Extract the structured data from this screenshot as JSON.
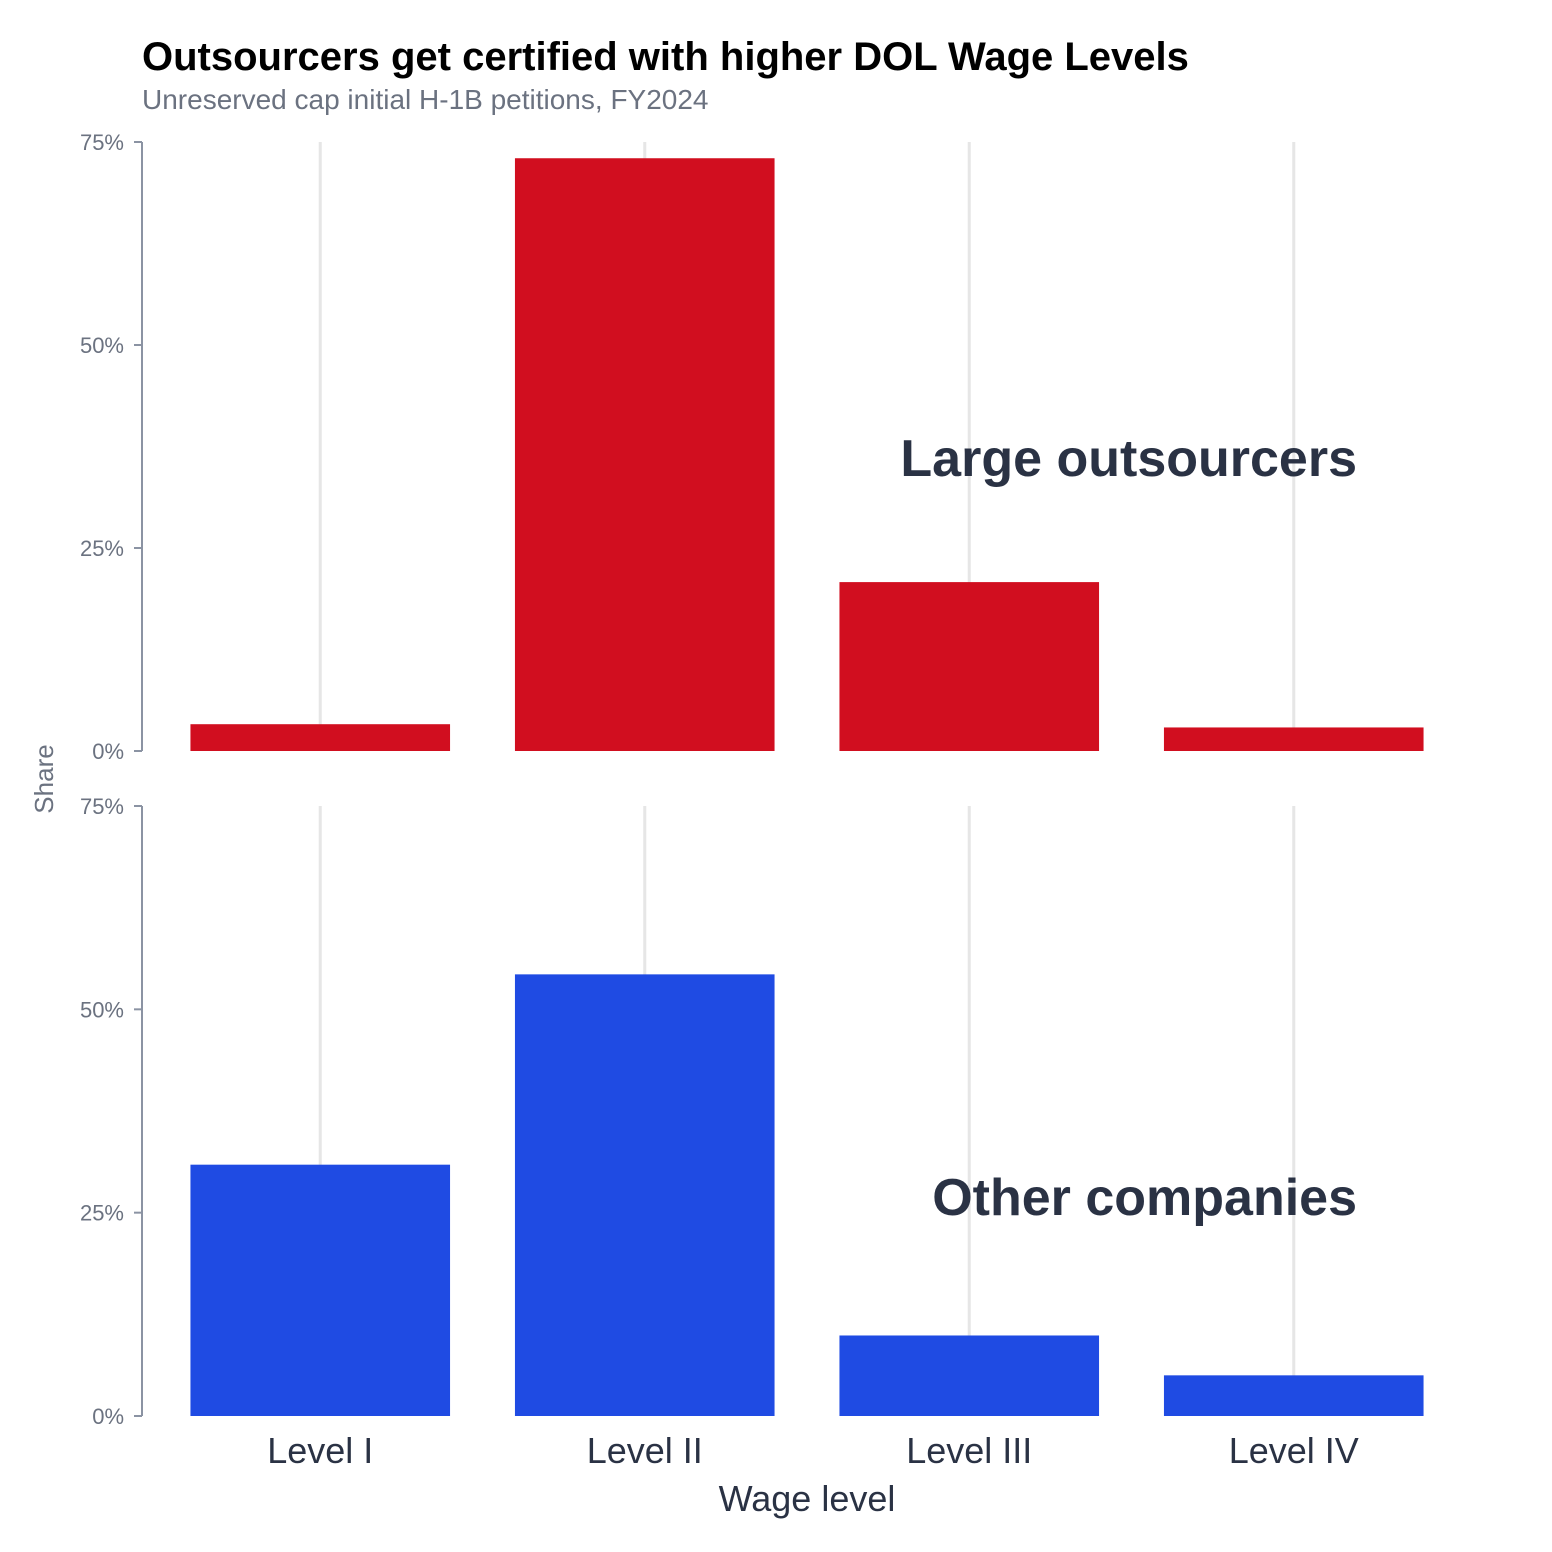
{
  "chart_data": {
    "type": "bar",
    "title": "Outsourcers get certified with higher DOL Wage Levels",
    "subtitle": "Unreserved cap initial H-1B petitions, FY2024",
    "xlabel": "Wage level",
    "ylabel": "Share",
    "categories": [
      "Level I",
      "Level II",
      "Level III",
      "Level IV"
    ],
    "ylim": [
      0,
      75
    ],
    "yticks": [
      0,
      25,
      50,
      75
    ],
    "ytick_labels": [
      "0%",
      "25%",
      "50%",
      "75%"
    ],
    "grid": "vertical",
    "layout": "two stacked panels sharing the x axis",
    "panels": [
      {
        "name": "Large outsourcers",
        "label": "Large outsourcers",
        "color": "#d10e1f",
        "values": [
          3.3,
          73.0,
          20.8,
          2.9
        ]
      },
      {
        "name": "Other companies",
        "label": "Other companies",
        "color": "#1f4be3",
        "values": [
          30.9,
          54.3,
          9.9,
          5.0
        ]
      }
    ]
  }
}
